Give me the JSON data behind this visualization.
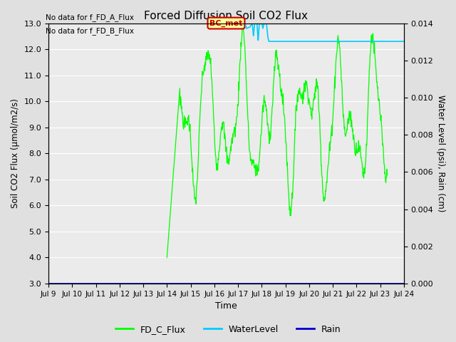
{
  "title": "Forced Diffusion Soil CO2 Flux",
  "xlabel": "Time",
  "ylabel_left": "Soil CO2 Flux (μmol/m2/s)",
  "ylabel_right": "Water Level (psi), Rain (cm)",
  "no_data_text_1": "No data for f_FD_A_Flux",
  "no_data_text_2": "No data for f_FD_B_Flux",
  "bc_met_label": "BC_met",
  "bc_met_color": "#cc0000",
  "bc_met_bg": "#ffff99",
  "ylim_left": [
    3.0,
    13.0
  ],
  "ylim_right": [
    0.0,
    0.014
  ],
  "yticks_left": [
    3.0,
    4.0,
    5.0,
    6.0,
    7.0,
    8.0,
    9.0,
    10.0,
    11.0,
    12.0,
    13.0
  ],
  "yticks_right": [
    0.0,
    0.002,
    0.004,
    0.006,
    0.008,
    0.01,
    0.012,
    0.014
  ],
  "xtick_labels": [
    "Jul 9",
    "Jul 10",
    "Jul 11",
    "Jul 12",
    "Jul 13",
    "Jul 14",
    "Jul 15",
    "Jul 16",
    "Jul 17",
    "Jul 18",
    "Jul 19",
    "Jul 20",
    "Jul 21",
    "Jul 22",
    "Jul 23",
    "Jul 24"
  ],
  "xlim": [
    0,
    15
  ],
  "bg_color": "#e0e0e0",
  "plot_bg_color": "#ebebeb",
  "grid_color": "#ffffff",
  "fd_c_color": "#00ff00",
  "water_color": "#00ccff",
  "rain_color": "#0000cc",
  "legend_entries": [
    "FD_C_Flux",
    "WaterLevel",
    "Rain"
  ],
  "figsize": [
    6.4,
    4.8
  ],
  "dpi": 100
}
